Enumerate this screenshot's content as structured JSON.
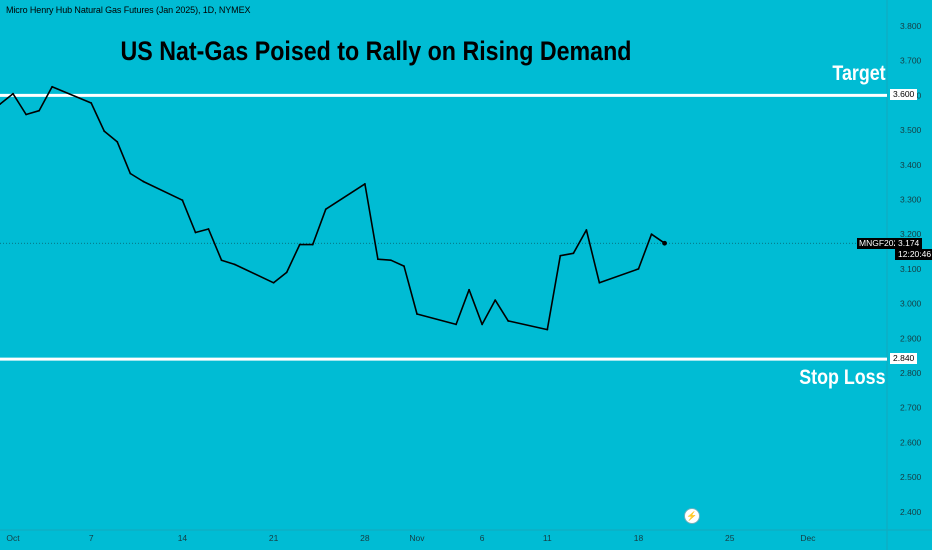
{
  "instrument": "Micro Henry Hub Natural Gas Futures (Jan 2025), 1D, NYMEX",
  "headline": "US Nat-Gas Poised to Rally on Rising Demand",
  "levels": {
    "target": {
      "label": "Target",
      "price_label": "3.600",
      "value": 3.6
    },
    "stop": {
      "label": "Stop Loss",
      "price_label": "2.840",
      "value": 2.84
    }
  },
  "last": {
    "symbol": "MNGF2025",
    "price": "3.174",
    "countdown": "12:20:46",
    "value": 3.174
  },
  "colors": {
    "background": "#00bcd4",
    "line": "#000000",
    "level_line": "#ffffff"
  },
  "event_icon": "lightning-icon",
  "chart_data": {
    "type": "line",
    "title": "US Nat-Gas Poised to Rally on Rising Demand",
    "ylim": [
      2.36,
      3.83
    ],
    "y_ticks": [
      3.8,
      3.7,
      3.6,
      3.5,
      3.4,
      3.3,
      3.2,
      3.1,
      3.0,
      2.9,
      2.8,
      2.7,
      2.6,
      2.5,
      2.4
    ],
    "y_tick_labels": [
      "3.800",
      "3.700",
      "3.600",
      "3.500",
      "3.400",
      "3.300",
      "3.200",
      "3.100",
      "3.000",
      "2.900",
      "2.800",
      "2.700",
      "2.600",
      "2.500",
      "2.400"
    ],
    "x_ticks": [
      {
        "label": "Oct",
        "date": "2024-10-01"
      },
      {
        "label": "7",
        "date": "2024-10-07"
      },
      {
        "label": "14",
        "date": "2024-10-14"
      },
      {
        "label": "21",
        "date": "2024-10-21"
      },
      {
        "label": "28",
        "date": "2024-10-28"
      },
      {
        "label": "Nov",
        "date": "2024-11-01"
      },
      {
        "label": "6",
        "date": "2024-11-06"
      },
      {
        "label": "11",
        "date": "2024-11-11"
      },
      {
        "label": "18",
        "date": "2024-11-18"
      },
      {
        "label": "25",
        "date": "2024-11-25"
      },
      {
        "label": "Dec",
        "date": "2024-12-01"
      }
    ],
    "x_range": [
      "2024-09-30",
      "2024-12-04"
    ],
    "series": [
      {
        "points": [
          [
            "2024-09-30",
            3.575
          ],
          [
            "2024-10-01",
            3.605
          ],
          [
            "2024-10-02",
            3.545
          ],
          [
            "2024-10-03",
            3.556
          ],
          [
            "2024-10-04",
            3.625
          ],
          [
            "2024-10-07",
            3.578
          ],
          [
            "2024-10-08",
            3.497
          ],
          [
            "2024-10-09",
            3.466
          ],
          [
            "2024-10-10",
            3.375
          ],
          [
            "2024-10-11",
            3.352
          ],
          [
            "2024-10-14",
            3.298
          ],
          [
            "2024-10-15",
            3.205
          ],
          [
            "2024-10-16",
            3.215
          ],
          [
            "2024-10-17",
            3.125
          ],
          [
            "2024-10-18",
            3.113
          ],
          [
            "2024-10-21",
            3.06
          ],
          [
            "2024-10-22",
            3.09
          ],
          [
            "2024-10-23",
            3.17
          ],
          [
            "2024-10-24",
            3.17
          ],
          [
            "2024-10-25",
            3.272
          ],
          [
            "2024-10-28",
            3.345
          ],
          [
            "2024-10-29",
            3.128
          ],
          [
            "2024-10-30",
            3.125
          ],
          [
            "2024-10-31",
            3.108
          ],
          [
            "2024-11-01",
            2.97
          ],
          [
            "2024-11-04",
            2.94
          ],
          [
            "2024-11-05",
            3.04
          ],
          [
            "2024-11-06",
            2.94
          ],
          [
            "2024-11-07",
            3.01
          ],
          [
            "2024-11-08",
            2.95
          ],
          [
            "2024-11-11",
            2.925
          ],
          [
            "2024-11-12",
            3.138
          ],
          [
            "2024-11-13",
            3.145
          ],
          [
            "2024-11-14",
            3.212
          ],
          [
            "2024-11-15",
            3.06
          ],
          [
            "2024-11-18",
            3.1
          ],
          [
            "2024-11-19",
            3.2
          ],
          [
            "2024-11-20",
            3.174
          ]
        ]
      }
    ]
  }
}
